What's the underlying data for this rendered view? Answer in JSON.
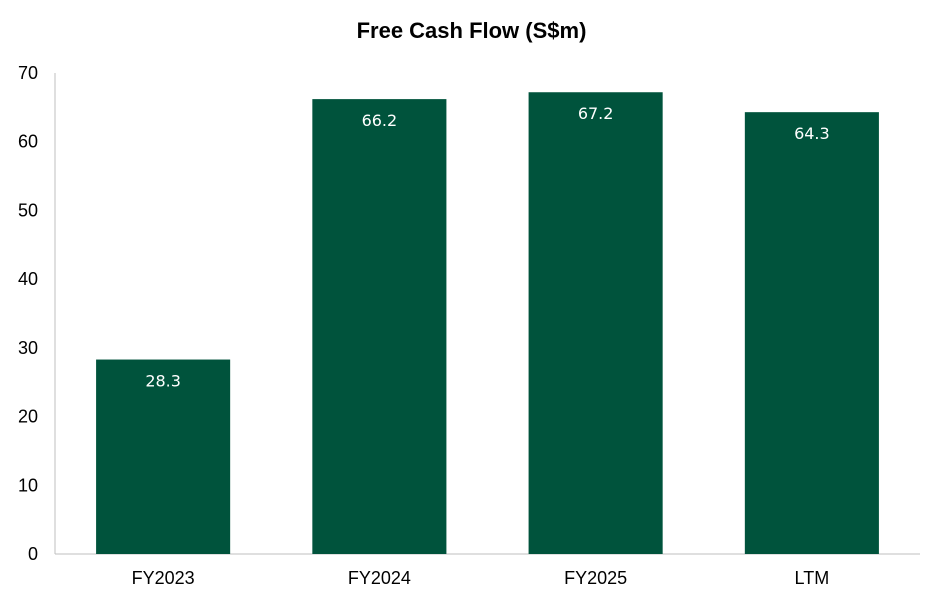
{
  "chart_data": {
    "type": "bar",
    "title": "Free Cash Flow (S$m)",
    "categories": [
      "FY2023",
      "FY2024",
      "FY2025",
      "LTM"
    ],
    "values": [
      28.3,
      66.2,
      67.2,
      64.3
    ],
    "data_labels": [
      "28.3",
      "66.2",
      "67.2",
      "64.3"
    ],
    "xlabel": "",
    "ylabel": "",
    "ylim": [
      0,
      70
    ],
    "yticks": [
      0,
      10,
      20,
      30,
      40,
      50,
      60,
      70
    ],
    "grid": false,
    "legend": "none",
    "bar_color": "#00533C",
    "data_label_color": "#FFFFFF"
  }
}
